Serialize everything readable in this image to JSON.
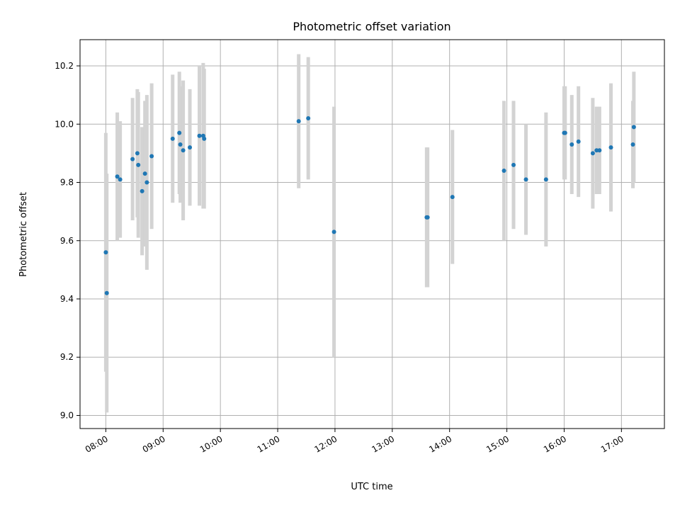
{
  "chart_data": {
    "type": "scatter",
    "title": "Photometric offset variation",
    "xlabel": "UTC time",
    "ylabel": "Photometric offset",
    "xlim": [
      "07:33",
      "17:45"
    ],
    "ylim": [
      8.955,
      10.29
    ],
    "grid": true,
    "x_ticks": [
      "08:00",
      "09:00",
      "10:00",
      "11:00",
      "12:00",
      "13:00",
      "14:00",
      "15:00",
      "16:00",
      "17:00"
    ],
    "y_ticks": [
      9.0,
      9.2,
      9.4,
      9.6,
      9.8,
      10.0,
      10.2
    ],
    "y_tick_labels": [
      "9.0",
      "9.2",
      "9.4",
      "9.6",
      "9.8",
      "10.0",
      "10.2"
    ],
    "point_color": "#1f77b4",
    "errorbar_color": "#d3d3d3",
    "points": [
      {
        "x": "08:00",
        "y": 9.56,
        "err": 0.41
      },
      {
        "x": "08:01",
        "y": 9.42,
        "err": 0.41
      },
      {
        "x": "08:12",
        "y": 9.82,
        "err": 0.22
      },
      {
        "x": "08:15",
        "y": 9.81,
        "err": 0.2
      },
      {
        "x": "08:28",
        "y": 9.88,
        "err": 0.21
      },
      {
        "x": "08:33",
        "y": 9.9,
        "err": 0.22
      },
      {
        "x": "08:34",
        "y": 9.86,
        "err": 0.25
      },
      {
        "x": "08:38",
        "y": 9.77,
        "err": 0.22
      },
      {
        "x": "08:41",
        "y": 9.83,
        "err": 0.25
      },
      {
        "x": "08:43",
        "y": 9.8,
        "err": 0.3
      },
      {
        "x": "08:48",
        "y": 9.89,
        "err": 0.25
      },
      {
        "x": "09:10",
        "y": 9.95,
        "err": 0.22
      },
      {
        "x": "09:17",
        "y": 9.97,
        "err": 0.21
      },
      {
        "x": "09:18",
        "y": 9.93,
        "err": 0.2
      },
      {
        "x": "09:21",
        "y": 9.91,
        "err": 0.24
      },
      {
        "x": "09:28",
        "y": 9.92,
        "err": 0.2
      },
      {
        "x": "09:38",
        "y": 9.96,
        "err": 0.24
      },
      {
        "x": "09:42",
        "y": 9.96,
        "err": 0.25
      },
      {
        "x": "09:43",
        "y": 9.95,
        "err": 0.24
      },
      {
        "x": "11:22",
        "y": 10.01,
        "err": 0.23
      },
      {
        "x": "11:32",
        "y": 10.02,
        "err": 0.21
      },
      {
        "x": "11:59",
        "y": 9.63,
        "err": 0.43
      },
      {
        "x": "13:36",
        "y": 9.68,
        "err": 0.24
      },
      {
        "x": "13:37",
        "y": 9.68,
        "err": 0.24
      },
      {
        "x": "14:03",
        "y": 9.75,
        "err": 0.23
      },
      {
        "x": "14:57",
        "y": 9.84,
        "err": 0.24
      },
      {
        "x": "15:07",
        "y": 9.86,
        "err": 0.22
      },
      {
        "x": "15:20",
        "y": 9.81,
        "err": 0.19
      },
      {
        "x": "15:41",
        "y": 9.81,
        "err": 0.23
      },
      {
        "x": "16:00",
        "y": 9.97,
        "err": 0.16
      },
      {
        "x": "16:01",
        "y": 9.97,
        "err": 0.16
      },
      {
        "x": "16:08",
        "y": 9.93,
        "err": 0.17
      },
      {
        "x": "16:15",
        "y": 9.94,
        "err": 0.19
      },
      {
        "x": "16:30",
        "y": 9.9,
        "err": 0.19
      },
      {
        "x": "16:34",
        "y": 9.91,
        "err": 0.15
      },
      {
        "x": "16:37",
        "y": 9.91,
        "err": 0.15
      },
      {
        "x": "16:49",
        "y": 9.92,
        "err": 0.22
      },
      {
        "x": "17:12",
        "y": 9.93,
        "err": 0.15
      },
      {
        "x": "17:13",
        "y": 9.99,
        "err": 0.19
      }
    ]
  }
}
